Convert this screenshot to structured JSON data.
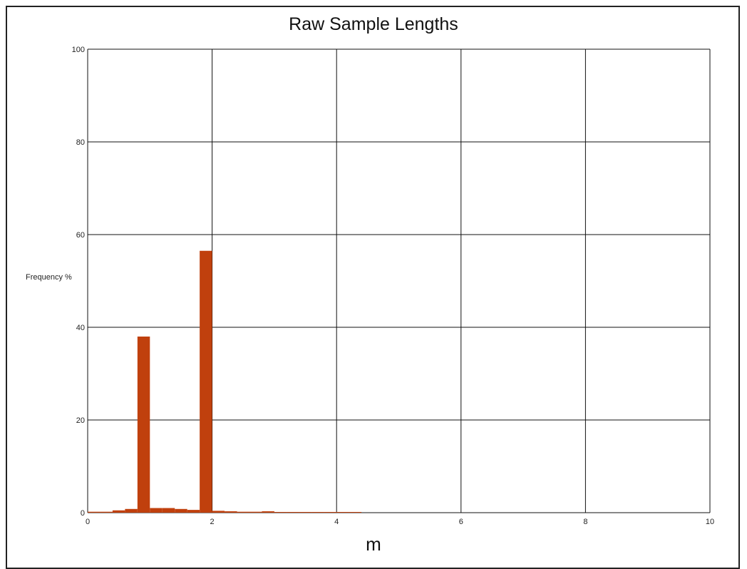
{
  "chart_data": {
    "type": "bar",
    "title": "Raw Sample Lengths",
    "xlabel": "m",
    "ylabel": "Frequency %",
    "xlim": [
      0,
      10
    ],
    "ylim": [
      0,
      100
    ],
    "xticks": [
      0,
      2,
      4,
      6,
      8,
      10
    ],
    "yticks": [
      0,
      20,
      40,
      60,
      80,
      100
    ],
    "grid": true,
    "bar_color": "#c0400d",
    "bin_width": 0.2,
    "bins": [
      {
        "x": 0.0,
        "y": 0.2
      },
      {
        "x": 0.2,
        "y": 0.2
      },
      {
        "x": 0.4,
        "y": 0.5
      },
      {
        "x": 0.6,
        "y": 0.8
      },
      {
        "x": 0.8,
        "y": 38.0
      },
      {
        "x": 1.0,
        "y": 1.0
      },
      {
        "x": 1.2,
        "y": 1.0
      },
      {
        "x": 1.4,
        "y": 0.8
      },
      {
        "x": 1.6,
        "y": 0.6
      },
      {
        "x": 1.8,
        "y": 56.5
      },
      {
        "x": 2.0,
        "y": 0.4
      },
      {
        "x": 2.2,
        "y": 0.3
      },
      {
        "x": 2.4,
        "y": 0.2
      },
      {
        "x": 2.6,
        "y": 0.2
      },
      {
        "x": 2.8,
        "y": 0.3
      },
      {
        "x": 3.0,
        "y": 0.1
      },
      {
        "x": 3.2,
        "y": 0.1
      },
      {
        "x": 3.4,
        "y": 0.1
      },
      {
        "x": 3.6,
        "y": 0.1
      },
      {
        "x": 3.8,
        "y": 0.1
      },
      {
        "x": 4.0,
        "y": 0.1
      },
      {
        "x": 4.2,
        "y": 0.05
      }
    ]
  }
}
